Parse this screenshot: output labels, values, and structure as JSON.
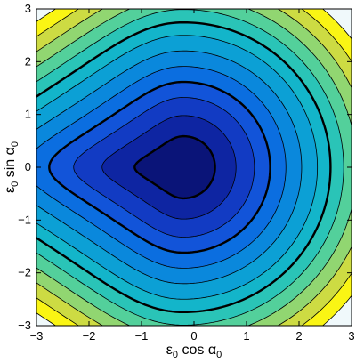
{
  "chart_data": {
    "type": "contour",
    "title": "",
    "xlabel": "ε₀ cos α₀",
    "ylabel": "ε₀ sin α₀",
    "xlabel_parts": {
      "eps": "ε",
      "sub1": "0",
      "mid": " cos α",
      "sub2": "0"
    },
    "ylabel_parts": {
      "eps": "ε",
      "sub1": "0",
      "mid": " sin α",
      "sub2": "0"
    },
    "xlim": [
      -3,
      3
    ],
    "ylim": [
      -3,
      3
    ],
    "xticks": [
      -3,
      -2,
      -1,
      0,
      1,
      2,
      3
    ],
    "yticks": [
      -3,
      -2,
      -1,
      0,
      1,
      2,
      3
    ],
    "xtick_labels": [
      "−3",
      "−2",
      "−1",
      "0",
      "1",
      "2",
      "3"
    ],
    "ytick_labels": [
      "−3",
      "−2",
      "−1",
      "0",
      "1",
      "2",
      "3"
    ],
    "colormap": "parula",
    "minimum": {
      "x": -0.2,
      "y": 0
    },
    "contour_radii_right": [
      0.6,
      1.0,
      1.35,
      1.65,
      1.95,
      2.25,
      2.55,
      2.8,
      3.05,
      3.3,
      3.55,
      3.8,
      4.05
    ],
    "highlighted_levels": [
      0,
      3,
      7
    ],
    "grid": false
  }
}
